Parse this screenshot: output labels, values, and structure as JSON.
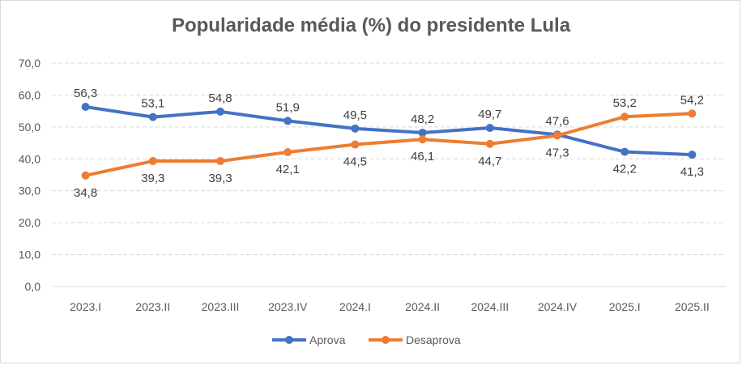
{
  "chart_data": {
    "type": "line",
    "title": "Popularidade média (%) do presidente Lula",
    "xlabel": "",
    "ylabel": "",
    "categories": [
      "2023.I",
      "2023.II",
      "2023.III",
      "2023.IV",
      "2024.I",
      "2024.II",
      "2024.III",
      "2024.IV",
      "2025.I",
      "2025.II"
    ],
    "series": [
      {
        "name": "Aprova",
        "color": "#4472C4",
        "values": [
          56.3,
          53.1,
          54.8,
          51.9,
          49.5,
          48.2,
          49.7,
          47.6,
          42.2,
          41.3
        ],
        "labels": [
          "56,3",
          "53,1",
          "54,8",
          "51,9",
          "49,5",
          "48,2",
          "49,7",
          "47,6",
          "42,2",
          "41,3"
        ]
      },
      {
        "name": "Desaprova",
        "color": "#ED7D31",
        "values": [
          34.8,
          39.3,
          39.3,
          42.1,
          44.5,
          46.1,
          44.7,
          47.3,
          53.2,
          54.2
        ],
        "labels": [
          "34,8",
          "39,3",
          "39,3",
          "42,1",
          "44,5",
          "46,1",
          "44,7",
          "47,3",
          "53,2",
          "54,2"
        ]
      }
    ],
    "ylim": [
      0,
      70
    ],
    "yticks": [
      0,
      10,
      20,
      30,
      40,
      50,
      60,
      70
    ],
    "ytick_labels": [
      "0,0",
      "10,0",
      "20,0",
      "30,0",
      "40,0",
      "50,0",
      "60,0",
      "70,0"
    ],
    "grid": true,
    "legend": "bottom"
  }
}
